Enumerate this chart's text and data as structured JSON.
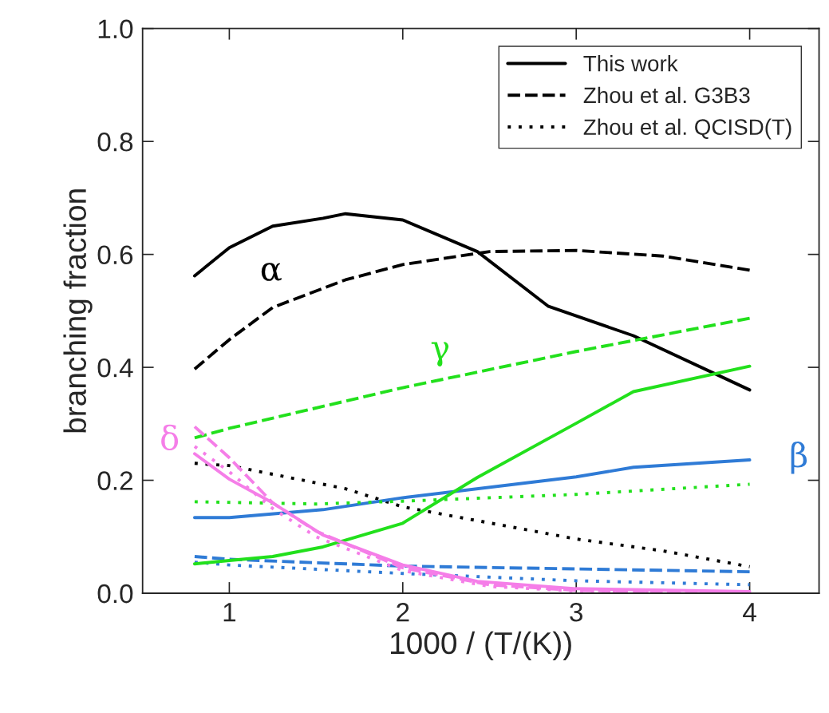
{
  "chart_data": {
    "type": "line",
    "xlabel": "1000 / (T/(K))",
    "ylabel": "branching fraction",
    "xlim": [
      0.5,
      4.4
    ],
    "ylim": [
      0,
      1
    ],
    "xticks": [
      1,
      2,
      3,
      4
    ],
    "yticks": [
      {
        "value": 0,
        "label": "0.0"
      },
      {
        "value": 0.2,
        "label": "0.2"
      },
      {
        "value": 0.4,
        "label": "0.4"
      },
      {
        "value": 0.6,
        "label": "0.6"
      },
      {
        "value": 0.8,
        "label": "0.8"
      },
      {
        "value": 1,
        "label": "1.0"
      }
    ],
    "grid": false,
    "legend": "top right",
    "marker": "none",
    "series": [
      {
        "name": "This work",
        "color": "#000000",
        "line_style": "solid",
        "x": [
          0.8,
          1,
          1.25,
          1.54,
          1.67,
          2,
          2.43,
          2.84,
          3.33,
          4
        ],
        "values": [
          0.562,
          0.612,
          0.65,
          0.664,
          0.672,
          0.661,
          0.605,
          0.508,
          0.456,
          0.36
        ]
      },
      {
        "name": "Zhou et al. G3B3",
        "color": "#000000",
        "line_style": "dashed",
        "x": [
          0.8,
          1,
          1.25,
          1.67,
          2,
          2.5,
          3,
          3.5,
          4
        ],
        "values": [
          0.397,
          0.449,
          0.506,
          0.555,
          0.582,
          0.605,
          0.607,
          0.597,
          0.572
        ]
      },
      {
        "name": "Zhou et al. QCISD(T)",
        "color": "#000000",
        "line_style": "dotted",
        "x": [
          0.8,
          1,
          1.67,
          2,
          3,
          3.5,
          4
        ],
        "values": [
          0.23,
          0.226,
          0.185,
          0.153,
          0.096,
          0.075,
          0.047
        ]
      },
      {
        "color": "#2f7bd6",
        "line_style": "solid",
        "x": [
          0.8,
          1,
          1.54,
          2,
          3,
          3.33,
          4
        ],
        "values": [
          0.134,
          0.134,
          0.148,
          0.169,
          0.206,
          0.223,
          0.236
        ]
      },
      {
        "color": "#2f7bd6",
        "line_style": "dashed",
        "x": [
          0.8,
          1,
          2,
          3,
          4
        ],
        "values": [
          0.065,
          0.06,
          0.048,
          0.043,
          0.038
        ]
      },
      {
        "color": "#2f7bd6",
        "line_style": "dotted",
        "x": [
          0.8,
          1,
          2,
          3,
          4
        ],
        "values": [
          0.055,
          0.05,
          0.035,
          0.022,
          0.015
        ]
      },
      {
        "color": "#22e01c",
        "line_style": "solid",
        "x": [
          0.8,
          1,
          1.25,
          1.54,
          2,
          2.43,
          3,
          3.33,
          4
        ],
        "values": [
          0.052,
          0.058,
          0.065,
          0.082,
          0.124,
          0.205,
          0.301,
          0.357,
          0.402
        ]
      },
      {
        "color": "#22e01c",
        "line_style": "dashed",
        "x": [
          0.8,
          1,
          2,
          3,
          4
        ],
        "values": [
          0.275,
          0.292,
          0.364,
          0.428,
          0.487
        ]
      },
      {
        "color": "#22e01c",
        "line_style": "dotted",
        "x": [
          0.8,
          1.5,
          2,
          3,
          4
        ],
        "values": [
          0.162,
          0.158,
          0.163,
          0.175,
          0.193
        ]
      },
      {
        "color": "#f57ee8",
        "line_style": "solid",
        "x": [
          0.8,
          1,
          1.25,
          1.54,
          2,
          2.43,
          3,
          4
        ],
        "values": [
          0.247,
          0.202,
          0.16,
          0.103,
          0.05,
          0.021,
          0.008,
          0.003
        ]
      },
      {
        "color": "#f57ee8",
        "line_style": "dashed",
        "x": [
          0.8,
          1,
          1.25,
          1.5,
          2,
          2.5,
          3,
          4
        ],
        "values": [
          0.295,
          0.24,
          0.16,
          0.11,
          0.045,
          0.015,
          0.005,
          0.001
        ]
      },
      {
        "color": "#f57ee8",
        "line_style": "dotted",
        "x": [
          0.8,
          1,
          1.25,
          1.5,
          2,
          2.5,
          3,
          4
        ],
        "values": [
          0.26,
          0.215,
          0.15,
          0.1,
          0.04,
          0.012,
          0.004,
          0.001
        ]
      }
    ],
    "annotations": [
      "α",
      "β",
      "γ",
      "δ"
    ]
  }
}
